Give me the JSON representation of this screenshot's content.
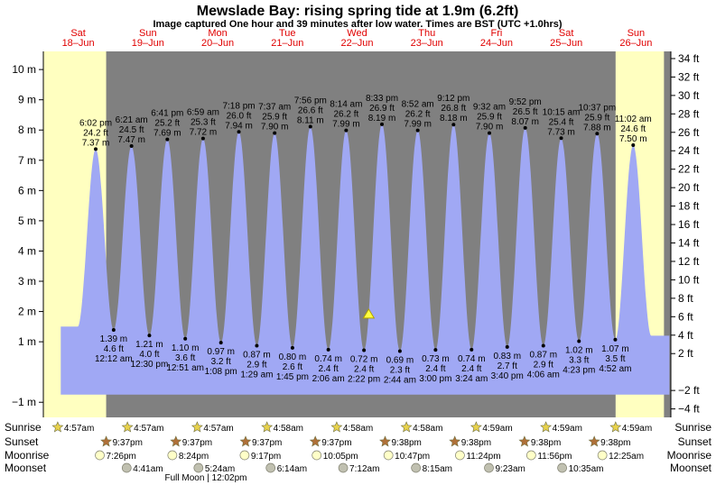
{
  "chart_data": {
    "type": "area",
    "title": "Mewslade Bay: rising  spring tide at 1.9m (6.2ft)",
    "subtitle": "Image captured One hour and 39 minutes after low water. Times are BST (UTC +1.0hrs)",
    "days": [
      {
        "name": "Sat",
        "date": "18–Jun"
      },
      {
        "name": "Sun",
        "date": "19–Jun"
      },
      {
        "name": "Mon",
        "date": "20–Jun"
      },
      {
        "name": "Tue",
        "date": "21–Jun"
      },
      {
        "name": "Wed",
        "date": "22–Jun"
      },
      {
        "name": "Thu",
        "date": "23–Jun"
      },
      {
        "name": "Fri",
        "date": "24–Jun"
      },
      {
        "name": "Sat",
        "date": "25–Jun"
      },
      {
        "name": "Sun",
        "date": "26–Jun"
      }
    ],
    "x_range_hours": [
      0,
      216
    ],
    "ylim_m": [
      -1.5,
      10.6
    ],
    "ylim_ft": [
      -4.92,
      34.78
    ],
    "y_ticks_m": [
      -1,
      1,
      2,
      3,
      4,
      5,
      6,
      7,
      8,
      9,
      10
    ],
    "y_tick_labels_m": [
      "−1 m",
      "1 m",
      "2 m",
      "3 m",
      "4 m",
      "5 m",
      "6 m",
      "7 m",
      "8 m",
      "9 m",
      "10 m"
    ],
    "y_ticks_ft": [
      -4,
      -2,
      2,
      4,
      6,
      8,
      10,
      12,
      14,
      16,
      18,
      20,
      22,
      24,
      26,
      28,
      30,
      32,
      34
    ],
    "y_tick_labels_ft": [
      "−4 ft",
      "−2 ft",
      "2 ft",
      "4 ft",
      "6 ft",
      "8 ft",
      "10 ft",
      "12 ft",
      "14 ft",
      "16 ft",
      "18 ft",
      "20 ft",
      "22 ft",
      "24 ft",
      "26 ft",
      "28 ft",
      "30 ft",
      "32 ft",
      "34 ft"
    ],
    "tide_series_start_hour": 6.0,
    "tide_series_end_hour": 215.5,
    "tides": [
      {
        "type": "high",
        "hour": 18.03,
        "m": 7.37,
        "time": "6:02 pm",
        "ft": "24.2 ft",
        "mlabel": "7.37 m"
      },
      {
        "type": "low",
        "hour": 24.2,
        "m": 1.39,
        "time": "12:12 am",
        "ft": "4.6 ft",
        "mlabel": "1.39 m"
      },
      {
        "type": "high",
        "hour": 30.35,
        "m": 7.47,
        "time": "6:21 am",
        "ft": "24.5 ft",
        "mlabel": "7.47 m"
      },
      {
        "type": "low",
        "hour": 36.5,
        "m": 1.21,
        "time": "12:30 pm",
        "ft": "4.0 ft",
        "mlabel": "1.21 m"
      },
      {
        "type": "high",
        "hour": 42.68,
        "m": 7.69,
        "time": "6:41 pm",
        "ft": "25.2 ft",
        "mlabel": "7.69 m"
      },
      {
        "type": "low",
        "hour": 48.85,
        "m": 1.1,
        "time": "12:51 am",
        "ft": "3.6 ft",
        "mlabel": "1.10 m"
      },
      {
        "type": "high",
        "hour": 54.98,
        "m": 7.72,
        "time": "6:59 am",
        "ft": "25.3 ft",
        "mlabel": "7.72 m"
      },
      {
        "type": "low",
        "hour": 61.13,
        "m": 0.97,
        "time": "1:08 pm",
        "ft": "3.2 ft",
        "mlabel": "0.97 m"
      },
      {
        "type": "high",
        "hour": 67.3,
        "m": 7.94,
        "time": "7:18 pm",
        "ft": "26.0 ft",
        "mlabel": "7.94 m"
      },
      {
        "type": "low",
        "hour": 73.48,
        "m": 0.87,
        "time": "1:29 am",
        "ft": "2.9 ft",
        "mlabel": "0.87 m"
      },
      {
        "type": "high",
        "hour": 79.62,
        "m": 7.9,
        "time": "7:37 am",
        "ft": "25.9 ft",
        "mlabel": "7.90 m"
      },
      {
        "type": "low",
        "hour": 85.75,
        "m": 0.8,
        "time": "1:45 pm",
        "ft": "2.6 ft",
        "mlabel": "0.80 m"
      },
      {
        "type": "high",
        "hour": 91.93,
        "m": 8.11,
        "time": "7:56 pm",
        "ft": "26.6 ft",
        "mlabel": "8.11 m"
      },
      {
        "type": "low",
        "hour": 98.1,
        "m": 0.74,
        "time": "2:06 am",
        "ft": "2.4 ft",
        "mlabel": "0.74 m"
      },
      {
        "type": "high",
        "hour": 104.23,
        "m": 7.99,
        "time": "8:14 am",
        "ft": "26.2 ft",
        "mlabel": "7.99 m"
      },
      {
        "type": "low",
        "hour": 110.37,
        "m": 0.72,
        "time": "2:22 pm",
        "ft": "2.4 ft",
        "mlabel": "0.72 m"
      },
      {
        "type": "high",
        "hour": 116.55,
        "m": 8.19,
        "time": "8:33 pm",
        "ft": "26.9 ft",
        "mlabel": "8.19 m"
      },
      {
        "type": "low",
        "hour": 122.73,
        "m": 0.69,
        "time": "2:44 am",
        "ft": "2.3 ft",
        "mlabel": "0.69 m"
      },
      {
        "type": "high",
        "hour": 128.87,
        "m": 7.99,
        "time": "8:52 am",
        "ft": "26.2 ft",
        "mlabel": "7.99 m"
      },
      {
        "type": "low",
        "hour": 135.0,
        "m": 0.73,
        "time": "3:00 pm",
        "ft": "2.4 ft",
        "mlabel": "0.73 m"
      },
      {
        "type": "high",
        "hour": 141.2,
        "m": 8.18,
        "time": "9:12 pm",
        "ft": "26.8 ft",
        "mlabel": "8.18 m"
      },
      {
        "type": "low",
        "hour": 147.4,
        "m": 0.74,
        "time": "3:24 am",
        "ft": "2.4 ft",
        "mlabel": "0.74 m"
      },
      {
        "type": "high",
        "hour": 153.53,
        "m": 7.9,
        "time": "9:32 am",
        "ft": "25.9 ft",
        "mlabel": "7.90 m"
      },
      {
        "type": "low",
        "hour": 159.67,
        "m": 0.83,
        "time": "3:40 pm",
        "ft": "2.7 ft",
        "mlabel": "0.83 m"
      },
      {
        "type": "high",
        "hour": 165.87,
        "m": 8.07,
        "time": "9:52 pm",
        "ft": "26.5 ft",
        "mlabel": "8.07 m"
      },
      {
        "type": "low",
        "hour": 172.1,
        "m": 0.87,
        "time": "4:06 am",
        "ft": "2.9 ft",
        "mlabel": "0.87 m"
      },
      {
        "type": "high",
        "hour": 178.25,
        "m": 7.73,
        "time": "10:15 am",
        "ft": "25.4 ft",
        "mlabel": "7.73 m"
      },
      {
        "type": "low",
        "hour": 184.38,
        "m": 1.02,
        "time": "4:23 pm",
        "ft": "3.3 ft",
        "mlabel": "1.02 m"
      },
      {
        "type": "high",
        "hour": 190.62,
        "m": 7.88,
        "time": "10:37 pm",
        "ft": "25.9 ft",
        "mlabel": "7.88 m"
      },
      {
        "type": "low",
        "hour": 196.87,
        "m": 1.07,
        "time": "4:52 am",
        "ft": "3.5 ft",
        "mlabel": "1.07 m"
      },
      {
        "type": "high",
        "hour": 203.03,
        "m": 7.5,
        "time": "11:02 am",
        "ft": "24.6 ft",
        "mlabel": "7.50 m"
      }
    ],
    "current": {
      "hour": 112.0,
      "m": 1.9
    },
    "sunrise": [
      "4:57am",
      "4:57am",
      "4:57am",
      "4:58am",
      "4:58am",
      "4:58am",
      "4:59am",
      "4:59am",
      "4:59am"
    ],
    "sunrise_hours": [
      4.95,
      28.95,
      52.95,
      76.97,
      100.97,
      124.97,
      148.98,
      172.98,
      196.98
    ],
    "sunset": [
      "9:37pm",
      "9:37pm",
      "9:37pm",
      "9:37pm",
      "9:38pm",
      "9:38pm",
      "9:38pm",
      "9:38pm"
    ],
    "sunset_hours": [
      45.62,
      69.62,
      93.62,
      117.62,
      141.63,
      165.63,
      189.63,
      213.63
    ],
    "moonrise": [
      "7:26pm",
      "8:24pm",
      "9:17pm",
      "10:05pm",
      "10:47pm",
      "11:24pm",
      "11:56pm",
      "12:25am"
    ],
    "moonrise_hours": [
      43.43,
      68.4,
      93.28,
      118.08,
      142.78,
      167.4,
      191.93,
      216.42
    ],
    "moonset": [
      "4:41am",
      "5:24am",
      "6:14am",
      "7:12am",
      "8:15am",
      "9:23am",
      "10:35am"
    ],
    "moonset_hours": [
      52.68,
      77.4,
      102.23,
      127.2,
      152.25,
      177.38,
      202.58
    ],
    "row_labels": {
      "sunrise": "Sunrise",
      "sunset": "Sunset",
      "moonrise": "Moonrise",
      "moonset": "Moonset"
    },
    "full_moon_note": "Full Moon | 12:02pm",
    "colors": {
      "day": "#ffffc0",
      "night": "#808080",
      "water": "#a0a8f4",
      "day_label": "#e00000",
      "sun_star": "#e8d24c",
      "sunset_star": "#b07038",
      "moonrise": "#ffffc8",
      "moonset": "#c0c0b0"
    }
  }
}
